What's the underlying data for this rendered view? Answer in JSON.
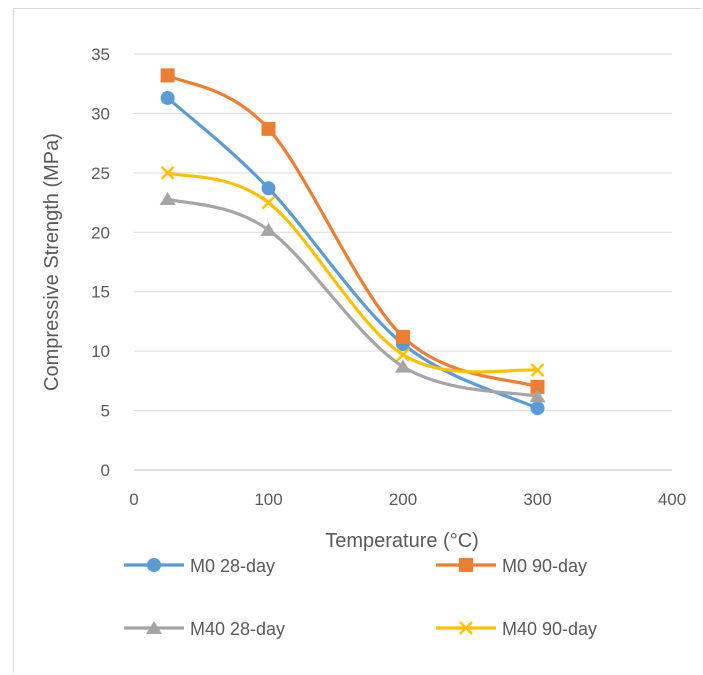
{
  "chart_data": {
    "type": "line",
    "title": "",
    "xlabel": "Temperature (°C)",
    "ylabel": "Compressive Strength (MPa)",
    "xlim": [
      0,
      400
    ],
    "ylim": [
      0,
      35
    ],
    "x_ticks": [
      0,
      100,
      200,
      300,
      400
    ],
    "y_ticks": [
      0,
      5,
      10,
      15,
      20,
      25,
      30,
      35
    ],
    "grid": "horizontal",
    "legend": "bottom",
    "smooth": true,
    "series": [
      {
        "name": "M0 28-day",
        "color": "#5B9BD5",
        "marker": "circle",
        "x": [
          25,
          100,
          200,
          300
        ],
        "y": [
          31.3,
          23.7,
          10.6,
          5.2
        ]
      },
      {
        "name": "M0 90-day",
        "color": "#ED7D31",
        "marker": "square",
        "x": [
          25,
          100,
          200,
          300
        ],
        "y": [
          33.2,
          28.7,
          11.2,
          7.0
        ]
      },
      {
        "name": "M40 28-day",
        "color": "#A5A5A5",
        "marker": "triangle",
        "x": [
          25,
          100,
          200,
          300
        ],
        "y": [
          22.8,
          20.2,
          8.7,
          6.2
        ]
      },
      {
        "name": "M40 90-day",
        "color": "#FFC000",
        "marker": "x",
        "x": [
          25,
          100,
          200,
          300
        ],
        "y": [
          25.0,
          22.5,
          9.7,
          8.4
        ]
      }
    ]
  }
}
